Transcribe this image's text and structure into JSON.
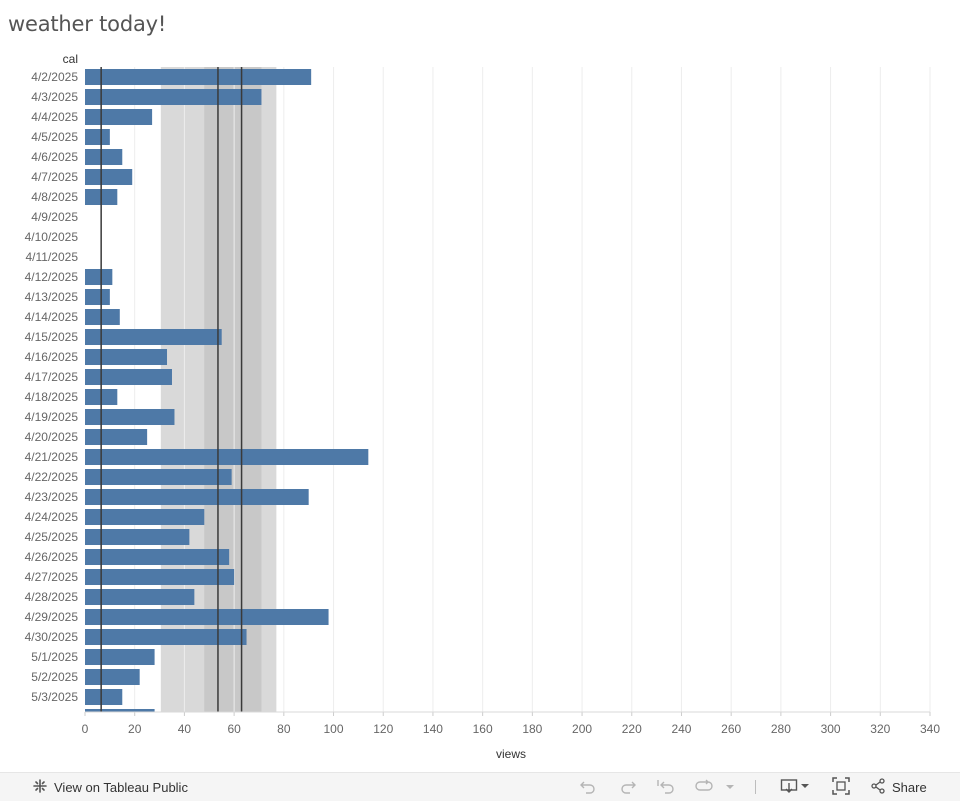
{
  "page": {
    "title": "weather today!"
  },
  "chart_data": {
    "type": "bar",
    "orientation": "horizontal",
    "row_header": "cal",
    "xlabel": "views",
    "xlim": [
      0,
      340
    ],
    "x_ticks": [
      0,
      20,
      40,
      60,
      80,
      100,
      120,
      140,
      160,
      180,
      200,
      220,
      240,
      260,
      280,
      300,
      320,
      340
    ],
    "categories": [
      "4/2/2025",
      "4/3/2025",
      "4/4/2025",
      "4/5/2025",
      "4/6/2025",
      "4/7/2025",
      "4/8/2025",
      "4/9/2025",
      "4/10/2025",
      "4/11/2025",
      "4/12/2025",
      "4/13/2025",
      "4/14/2025",
      "4/15/2025",
      "4/16/2025",
      "4/17/2025",
      "4/18/2025",
      "4/19/2025",
      "4/20/2025",
      "4/21/2025",
      "4/22/2025",
      "4/23/2025",
      "4/24/2025",
      "4/25/2025",
      "4/26/2025",
      "4/27/2025",
      "4/28/2025",
      "4/29/2025",
      "4/30/2025",
      "5/1/2025",
      "5/2/2025",
      "5/3/2025"
    ],
    "values": [
      91,
      71,
      27,
      10,
      15,
      19,
      13,
      null,
      null,
      null,
      11,
      10,
      14,
      55,
      33,
      35,
      13,
      36,
      25,
      114,
      59,
      90,
      48,
      42,
      58,
      60,
      44,
      98,
      65,
      28,
      22,
      15
    ],
    "partial_next_value": 28,
    "reference_lines": [
      6.5,
      53.5,
      63
    ],
    "bands": [
      {
        "from": 30.5,
        "to": 77,
        "color": "#d9d9d9"
      },
      {
        "from": 48,
        "to": 71,
        "color": "#c8c8c8"
      }
    ],
    "bar_color": "#4e79a7",
    "grid": true
  },
  "toolbar": {
    "view_label": "View on Tableau Public",
    "share_label": "Share",
    "icons": [
      "tableau-logo-icon",
      "undo-icon",
      "redo-icon",
      "revert-icon",
      "refresh-icon",
      "dropdown-icon",
      "download-icon",
      "fullscreen-icon",
      "share-icon"
    ]
  }
}
